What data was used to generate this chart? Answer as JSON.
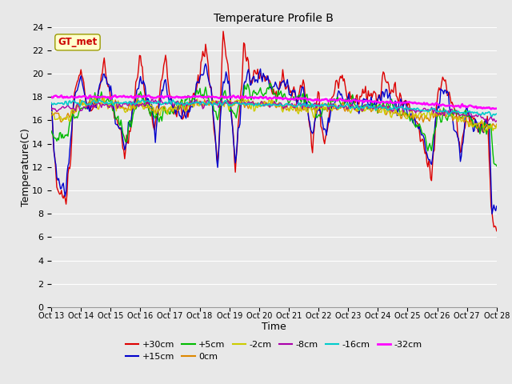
{
  "title": "Temperature Profile B",
  "xlabel": "Time",
  "ylabel": "Temperature(C)",
  "annotation_text": "GT_met",
  "annotation_color": "#cc0000",
  "annotation_bg": "#ffffcc",
  "annotation_border": "#999900",
  "ylim": [
    0,
    24
  ],
  "yticks": [
    0,
    2,
    4,
    6,
    8,
    10,
    12,
    14,
    16,
    18,
    20,
    22,
    24
  ],
  "xtick_labels": [
    "Oct 13",
    "Oct 14",
    "Oct 15",
    "Oct 16",
    "Oct 17",
    "Oct 18",
    "Oct 19",
    "Oct 20",
    "Oct 21",
    "Oct 22",
    "Oct 23",
    "Oct 24",
    "Oct 25",
    "Oct 26",
    "Oct 27",
    "Oct 28"
  ],
  "series_colors": {
    "+30cm": "#dd0000",
    "+15cm": "#0000cc",
    "+5cm": "#00bb00",
    "0cm": "#dd8800",
    "-2cm": "#cccc00",
    "-8cm": "#aa00aa",
    "-16cm": "#00cccc",
    "-32cm": "#ff00ff"
  },
  "bg_color": "#e8e8e8",
  "plot_bg_color": "#e8e8e8",
  "grid_color": "#ffffff",
  "n_points": 480
}
